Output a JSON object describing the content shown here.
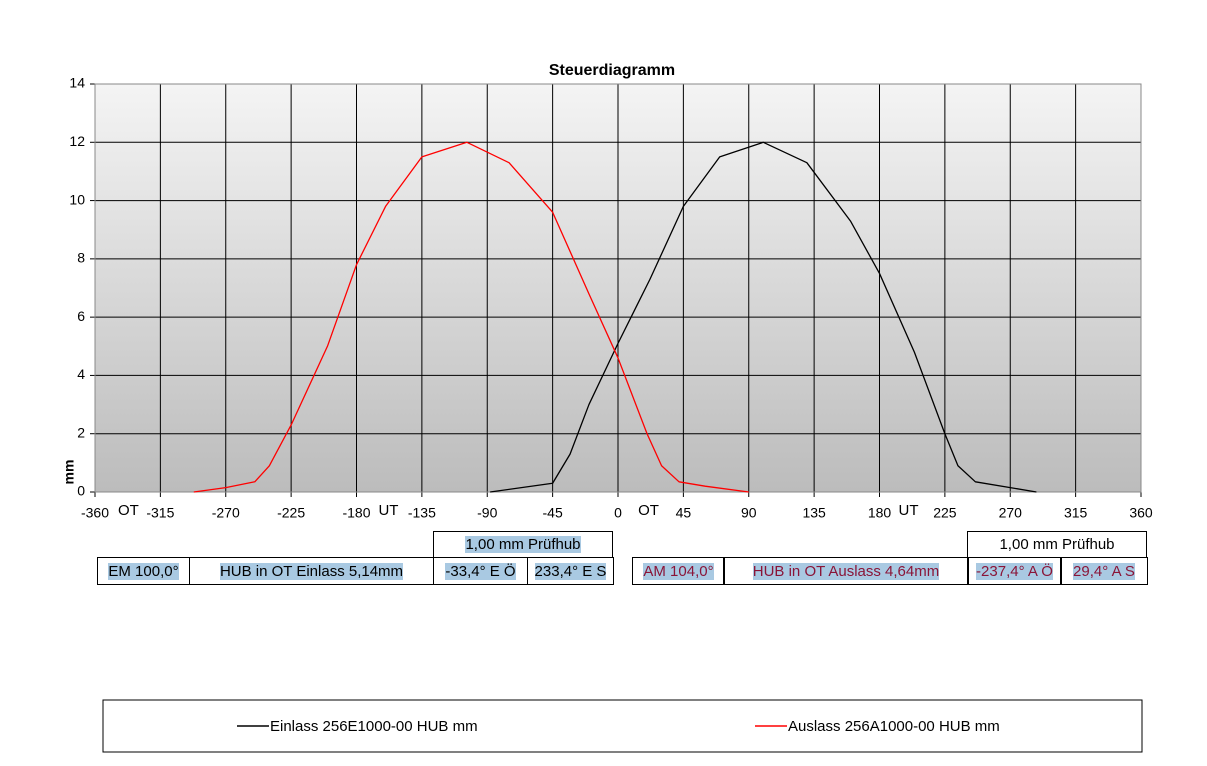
{
  "chart_data": {
    "type": "line",
    "title": "Steuerdiagramm",
    "ylabel": "mm",
    "xlim": [
      -360,
      360
    ],
    "xticks": [
      -360,
      -315,
      -270,
      -225,
      -180,
      -135,
      -90,
      -45,
      0,
      45,
      90,
      135,
      180,
      225,
      270,
      315,
      360
    ],
    "ylim": [
      0,
      14
    ],
    "yticks": [
      0,
      2,
      4,
      6,
      8,
      10,
      12,
      14
    ],
    "grid": true,
    "annotations": [
      {
        "x": -337,
        "label": "OT"
      },
      {
        "x": -158,
        "label": "UT"
      },
      {
        "x": 21,
        "label": "OT"
      },
      {
        "x": 200,
        "label": "UT"
      }
    ],
    "series": [
      {
        "name": "Einlass 256E1000-00 HUB mm",
        "color": "#000000",
        "x": [
          -88,
          -45,
          -33,
          -20,
          0,
          22,
          45,
          70,
          100,
          130,
          160,
          180,
          204,
          225,
          234,
          246,
          270,
          288
        ],
        "values": [
          0,
          0.3,
          1.3,
          3,
          5.1,
          7.3,
          9.8,
          11.5,
          12,
          11.3,
          9.3,
          7.5,
          4.8,
          2,
          0.9,
          0.35,
          0.15,
          0
        ]
      },
      {
        "name": "Auslass 256A1000-00 HUB mm",
        "color": "#ff0000",
        "x": [
          -292,
          -270,
          -250,
          -240,
          -225,
          -200,
          -180,
          -160,
          -135,
          -104,
          -75,
          -45,
          -20,
          0,
          20,
          30,
          42,
          60,
          90
        ],
        "values": [
          0,
          0.15,
          0.35,
          0.9,
          2.3,
          5,
          7.8,
          9.8,
          11.5,
          12,
          11.3,
          9.6,
          6.8,
          4.6,
          2,
          0.9,
          0.35,
          0.2,
          0
        ]
      }
    ]
  },
  "tables": [
    {
      "header": "1,00 mm Prüfhub",
      "row": [
        "EM 100,0°",
        "HUB in OT Einlass 5,14mm",
        "-33,4° E Ö",
        "233,4° E S"
      ]
    },
    {
      "header": "1,00 mm Prüfhub",
      "row": [
        "AM 104,0°",
        "HUB in OT Auslass 4,64mm",
        "-237,4° A Ö",
        "29,4° A S"
      ]
    }
  ]
}
